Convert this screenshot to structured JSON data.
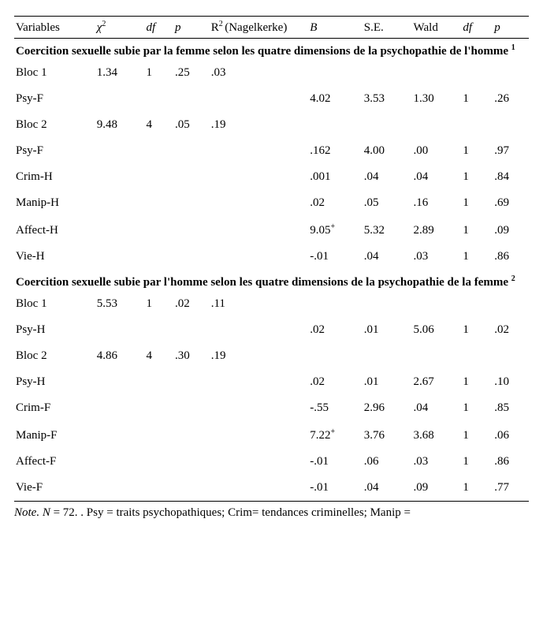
{
  "columns": {
    "var": "Variables",
    "chi2_pre": "χ",
    "chi2_sup": "2",
    "df1": "df",
    "p1": "p",
    "r2_pre": "R",
    "r2_sup": "2 ",
    "r2_post": "(Nagelkerke)",
    "B": "B",
    "SE": "S.E.",
    "Wald": "Wald",
    "df2": "df",
    "p2": "p"
  },
  "sections": [
    {
      "title_pre": "Coercition sexuelle subie par la femme selon les quatre dimensions de la psychopathie de l'homme ",
      "title_sup": "1",
      "rows": [
        {
          "var": "Bloc 1",
          "chi2": "1.34",
          "df1": "1",
          "p1": ".25",
          "r2": ".03",
          "B": "",
          "SE": "",
          "Wald": "",
          "df2": "",
          "p2": ""
        },
        {
          "var": "Psy-F",
          "chi2": "",
          "df1": "",
          "p1": "",
          "r2": "",
          "B": "4.02",
          "SE": "3.53",
          "Wald": "1.30",
          "df2": "1",
          "p2": ".26"
        },
        {
          "var": "Bloc 2",
          "chi2": "9.48",
          "df1": "4",
          "p1": ".05",
          "r2": ".19",
          "B": "",
          "SE": "",
          "Wald": "",
          "df2": "",
          "p2": ""
        },
        {
          "var": "Psy-F",
          "chi2": "",
          "df1": "",
          "p1": "",
          "r2": "",
          "B": ".162",
          "SE": "4.00",
          "Wald": ".00",
          "df2": "1",
          "p2": ".97"
        },
        {
          "var": "Crim-H",
          "chi2": "",
          "df1": "",
          "p1": "",
          "r2": "",
          "B": ".001",
          "SE": ".04",
          "Wald": ".04",
          "df2": "1",
          "p2": ".84"
        },
        {
          "var": "Manip-H",
          "chi2": "",
          "df1": "",
          "p1": "",
          "r2": "",
          "B": ".02",
          "SE": ".05",
          "Wald": ".16",
          "df2": "1",
          "p2": ".69"
        },
        {
          "var": "Affect-H",
          "chi2": "",
          "df1": "",
          "p1": "",
          "r2": "",
          "B": "9.05",
          "B_sup": "+",
          "SE": "5.32",
          "Wald": "2.89",
          "df2": "1",
          "p2": ".09"
        },
        {
          "var": "Vie-H",
          "chi2": "",
          "df1": "",
          "p1": "",
          "r2": "",
          "B": "-.01",
          "SE": ".04",
          "Wald": ".03",
          "df2": "1",
          "p2": ".86"
        }
      ]
    },
    {
      "title_pre": "Coercition sexuelle subie par l'homme selon les quatre dimensions de la psychopathie de la femme ",
      "title_sup": "2",
      "rows": [
        {
          "var": "Bloc 1",
          "chi2": "5.53",
          "df1": "1",
          "p1": ".02",
          "r2": ".11",
          "B": "",
          "SE": "",
          "Wald": "",
          "df2": "",
          "p2": ""
        },
        {
          "var": "Psy-H",
          "chi2": "",
          "df1": "",
          "p1": "",
          "r2": "",
          "B": ".02",
          "SE": ".01",
          "Wald": "5.06",
          "df2": "1",
          "p2": ".02"
        },
        {
          "var": "Bloc 2",
          "chi2": "4.86",
          "df1": "4",
          "p1": ".30",
          "r2": ".19",
          "B": "",
          "SE": "",
          "Wald": "",
          "df2": "",
          "p2": ""
        },
        {
          "var": "Psy-H",
          "chi2": "",
          "df1": "",
          "p1": "",
          "r2": "",
          "B": ".02",
          "SE": ".01",
          "Wald": "2.67",
          "df2": "1",
          "p2": ".10"
        },
        {
          "var": "Crim-F",
          "chi2": "",
          "df1": "",
          "p1": "",
          "r2": "",
          "B": "-.55",
          "SE": "2.96",
          "Wald": ".04",
          "df2": "1",
          "p2": ".85"
        },
        {
          "var": "Manip-F",
          "chi2": "",
          "df1": "",
          "p1": "",
          "r2": "",
          "B": "7.22",
          "B_sup": "+",
          "SE": "3.76",
          "Wald": "3.68",
          "df2": "1",
          "p2": ".06"
        },
        {
          "var": "Affect-F",
          "chi2": "",
          "df1": "",
          "p1": "",
          "r2": "",
          "B": "-.01",
          "SE": ".06",
          "Wald": ".03",
          "df2": "1",
          "p2": ".86"
        },
        {
          "var": "Vie-F",
          "chi2": "",
          "df1": "",
          "p1": "",
          "r2": "",
          "B": "-.01",
          "SE": ".04",
          "Wald": ".09",
          "df2": "1",
          "p2": ".77",
          "last": true
        }
      ]
    }
  ],
  "note": {
    "prefix_ital": "Note. N",
    "rest": " = 72.  . Psy = traits psychopathiques; Crim= tendances criminelles; Manip ="
  },
  "col_widths": [
    "90",
    "55",
    "32",
    "40",
    "110",
    "60",
    "55",
    "55",
    "35",
    "40"
  ],
  "style": {
    "font_family": "Times New Roman",
    "font_size_pt": 11,
    "text_color": "#000000",
    "background_color": "#ffffff",
    "border_color": "#000000"
  }
}
